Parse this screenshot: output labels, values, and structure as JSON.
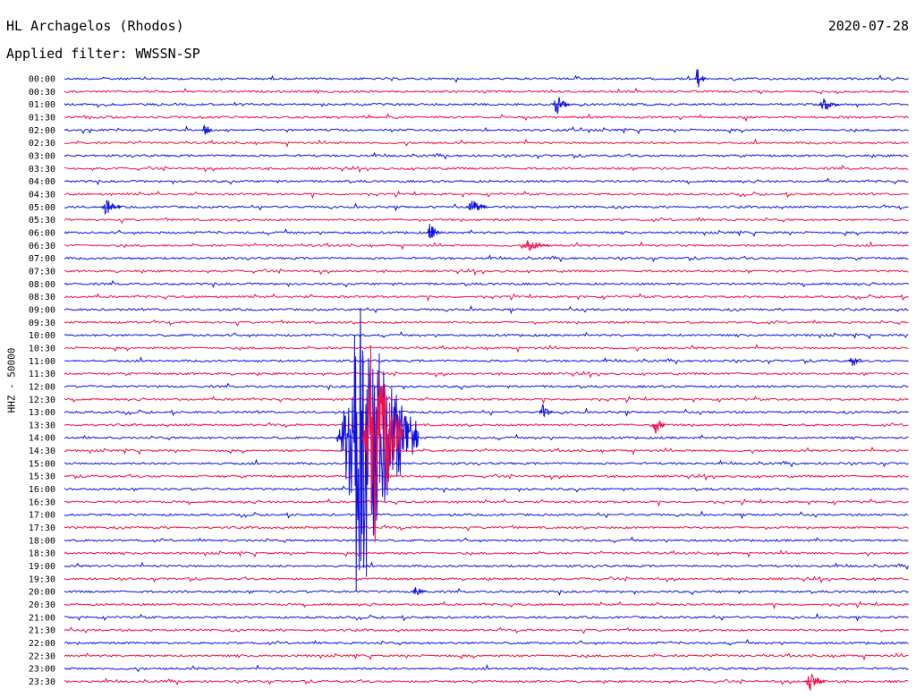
{
  "header": {
    "station": "HL Archagelos (Rhodos)",
    "date": "2020-07-28",
    "filter": "Applied filter: WWSSN-SP"
  },
  "axis": {
    "ylabel": "HHZ - 50000"
  },
  "colors": {
    "blue": "#1010e0",
    "red": "#f0104a",
    "text": "#000000"
  },
  "chart_data": {
    "type": "line",
    "title": "HL Archagelos (Rhodos)",
    "subtitle": "Applied filter: WWSSN-SP",
    "ylabel": "HHZ - 50000",
    "date": "2020-07-28",
    "rows": [
      "00:00",
      "00:30",
      "01:00",
      "01:30",
      "02:00",
      "02:30",
      "03:00",
      "03:30",
      "04:00",
      "04:30",
      "05:00",
      "05:30",
      "06:00",
      "06:30",
      "07:00",
      "07:30",
      "08:00",
      "08:30",
      "09:00",
      "09:30",
      "10:00",
      "10:30",
      "11:00",
      "11:30",
      "12:00",
      "12:30",
      "13:00",
      "13:30",
      "14:00",
      "14:30",
      "15:00",
      "15:30",
      "16:00",
      "16:30",
      "17:00",
      "17:30",
      "18:00",
      "18:30",
      "19:00",
      "19:30",
      "20:00",
      "20:30",
      "21:00",
      "21:30",
      "22:00",
      "22:30",
      "23:00",
      "23:30"
    ],
    "row_colors": [
      "blue",
      "red"
    ],
    "grid": false,
    "legend": "none",
    "minutes_per_row": 30,
    "events": [
      {
        "row": 0,
        "minute": 22.5,
        "amp": 1.5,
        "width": 1.5,
        "color": "blue"
      },
      {
        "row": 2,
        "minute": 17.5,
        "amp": 1.2,
        "width": 2.5,
        "color": "blue"
      },
      {
        "row": 2,
        "minute": 27.0,
        "amp": 0.9,
        "width": 3.0,
        "color": "blue"
      },
      {
        "row": 4,
        "minute": 5.0,
        "amp": 1.0,
        "width": 1.5,
        "color": "blue"
      },
      {
        "row": 10,
        "minute": 1.5,
        "amp": 1.0,
        "width": 3.0,
        "color": "blue"
      },
      {
        "row": 10,
        "minute": 14.5,
        "amp": 1.0,
        "width": 3.0,
        "color": "blue"
      },
      {
        "row": 12,
        "minute": 13.0,
        "amp": 1.2,
        "width": 2.0,
        "color": "blue"
      },
      {
        "row": 13,
        "minute": 16.5,
        "amp": 0.8,
        "width": 4.0,
        "color": "red"
      },
      {
        "row": 22,
        "minute": 28.0,
        "amp": 1.0,
        "width": 2.0,
        "color": "blue"
      },
      {
        "row": 26,
        "minute": 17.0,
        "amp": 1.0,
        "width": 2.0,
        "color": "blue"
      },
      {
        "row": 27,
        "minute": 21.0,
        "amp": 1.2,
        "width": 2.0,
        "color": "red"
      },
      {
        "row": 28,
        "minute": 10.5,
        "amp": 20.0,
        "width": 12.0,
        "color": "blue"
      },
      {
        "row": 28,
        "minute": 11.0,
        "amp": 15.0,
        "width": 6.0,
        "color": "red"
      },
      {
        "row": 40,
        "minute": 12.5,
        "amp": 0.8,
        "width": 2.0,
        "color": "blue"
      },
      {
        "row": 47,
        "minute": 26.5,
        "amp": 1.3,
        "width": 3.0,
        "color": "red"
      }
    ]
  }
}
